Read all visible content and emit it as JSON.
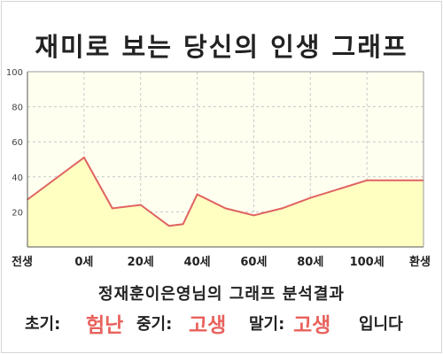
{
  "title": "재미로 보는 당신의 인생 그래프",
  "chart_data": {
    "type": "area",
    "x_labels": [
      "전생",
      "0세",
      "20세",
      "40세",
      "60세",
      "80세",
      "100세",
      "환생"
    ],
    "x": [
      -20,
      0,
      10,
      20,
      30,
      35,
      40,
      50,
      60,
      70,
      80,
      100,
      120
    ],
    "y": [
      27,
      51,
      22,
      24,
      12,
      13,
      30,
      22,
      18,
      22,
      28,
      38,
      38
    ],
    "yticks": [
      20,
      40,
      60,
      80,
      100
    ],
    "ylim": [
      0,
      100
    ],
    "grid": true,
    "line_color": "#e06360",
    "fill_color": "#ffffc2",
    "plot_bg": "#fffff0"
  },
  "result": {
    "heading": "정재훈이은영님의 그래프 분석결과",
    "early_label": "초기:",
    "early_value": "험난",
    "mid_label": "중기:",
    "mid_value": "고생",
    "late_label": "말기:",
    "late_value": "고생",
    "suffix": "입니다"
  }
}
